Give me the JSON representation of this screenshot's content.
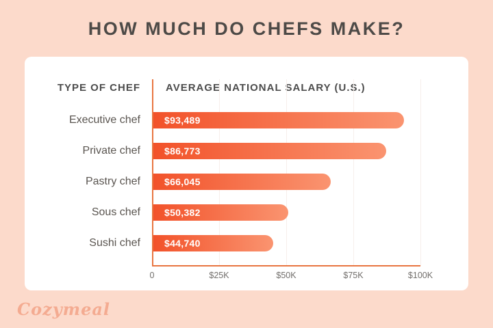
{
  "title": "HOW MUCH DO CHEFS MAKE?",
  "table": {
    "type_header": "TYPE OF CHEF",
    "salary_header": "AVERAGE NATIONAL SALARY (U.S.)"
  },
  "chart_data": {
    "type": "bar",
    "orientation": "horizontal",
    "title": "HOW MUCH DO CHEFS MAKE?",
    "categories": [
      "Executive chef",
      "Private chef",
      "Pastry chef",
      "Sous chef",
      "Sushi chef"
    ],
    "values": [
      93489,
      86773,
      66045,
      50382,
      44740
    ],
    "value_labels": [
      "$93,489",
      "$86,773",
      "$66,045",
      "$50,382",
      "$44,740"
    ],
    "xlabel": "",
    "ylabel": "",
    "xlim": [
      0,
      100000
    ],
    "x_ticks": [
      0,
      25000,
      50000,
      75000,
      100000
    ],
    "x_tick_labels": [
      "0",
      "$25K",
      "$50K",
      "$75K",
      "$100K"
    ],
    "grid": "faint-vertical",
    "legend": "none"
  },
  "branding": {
    "logo_text": "Cozymeal"
  },
  "colors": {
    "page_background": "#fcdacb",
    "card_background": "#ffffff",
    "title_text": "#4d4a47",
    "header_text": "#4c4c4c",
    "category_text": "#5a5550",
    "tick_text": "#716e6b",
    "axis_line": "#e8743f",
    "gridline": "#f6efeb",
    "bar_gradient_start": "#f2522a",
    "bar_gradient_end": "#fa9470",
    "value_text": "#ffffff",
    "logo_text_color": "#f4ab91"
  }
}
